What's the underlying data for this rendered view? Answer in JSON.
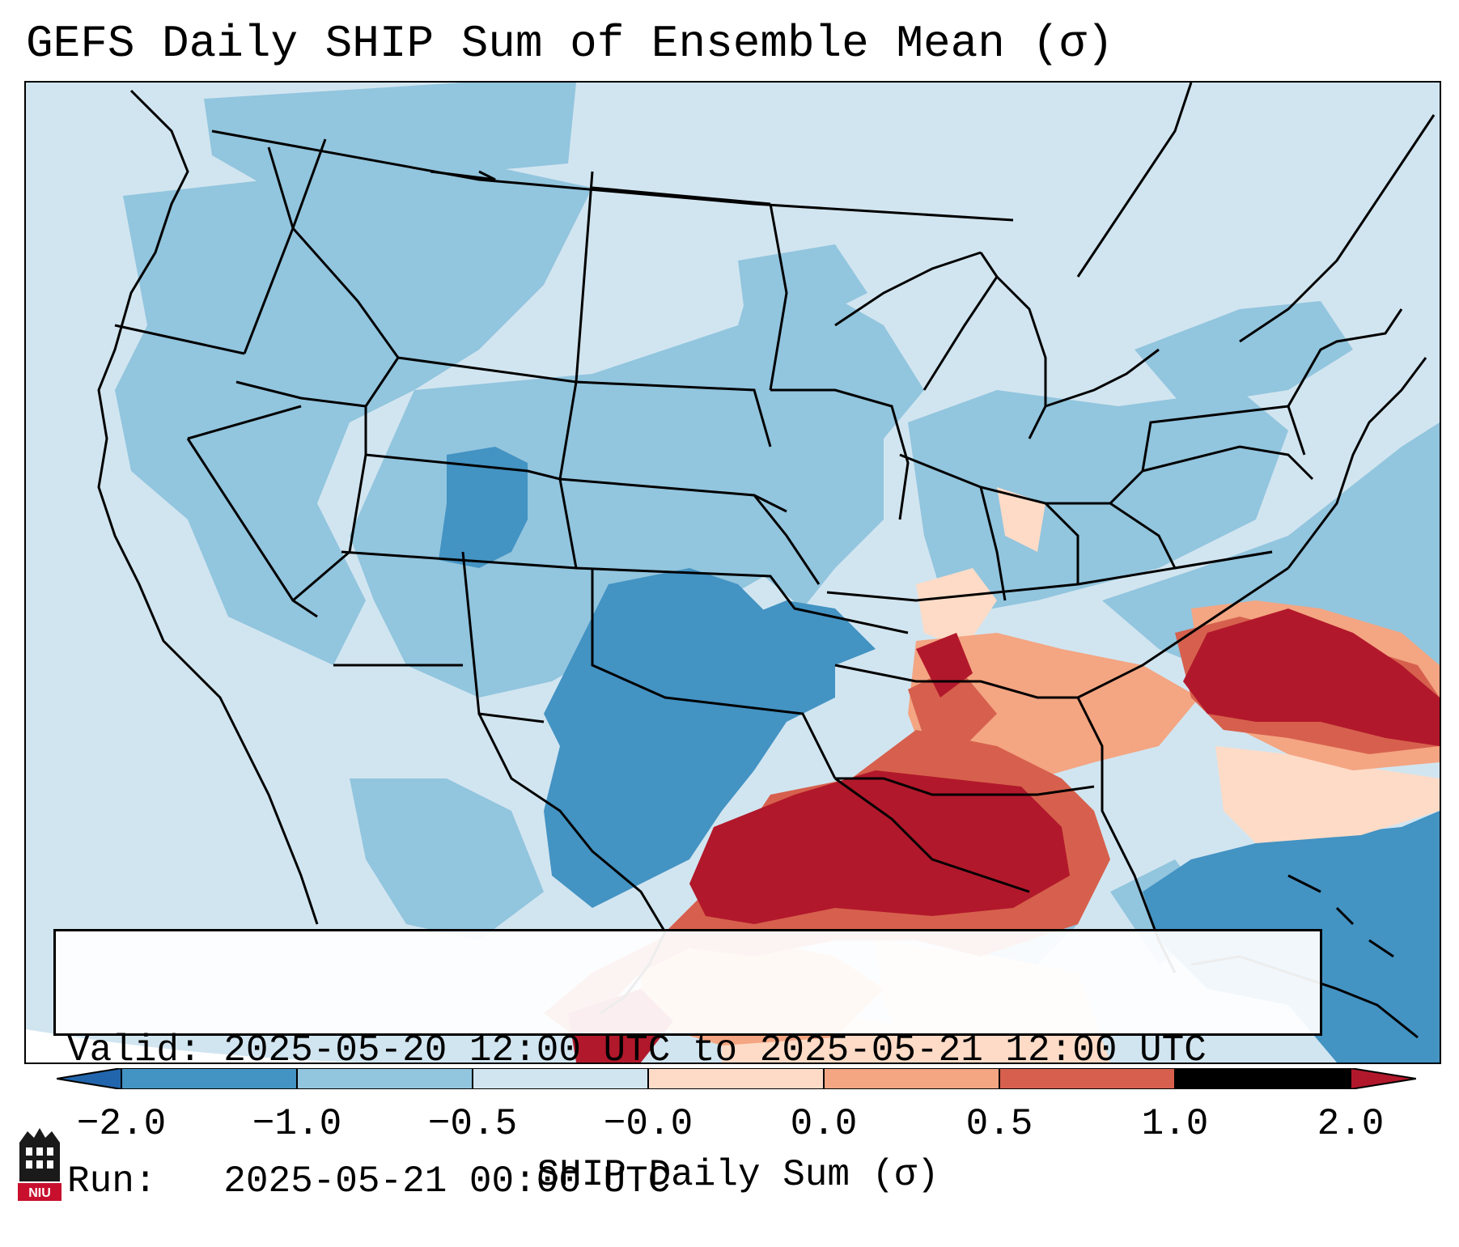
{
  "title": "GEFS Daily SHIP Sum of Ensemble Mean (σ)",
  "info": {
    "valid_label": "Valid:",
    "valid_value": "2025-05-20 12:00 UTC to 2025-05-21 12:00 UTC",
    "run_label": "Run:",
    "run_value": "2025-05-21 00:00 UTC"
  },
  "colorbar": {
    "label": "SHIP Daily Sum (σ)",
    "ticks": [
      "−2.0",
      "−1.0",
      "−0.5",
      "−0.0",
      "0.0",
      "0.5",
      "1.0",
      "2.0"
    ],
    "colors": {
      "below_min": "#2166ac",
      "bin_-2_-1": "#4393c3",
      "bin_-1_-0.5": "#92c5de",
      "bin_-0.5_0": "#d1e5f0",
      "bin_0_0.5": "#fddbc7",
      "bin_0.5_1": "#f4a582",
      "bin_1_2": "#d6604d",
      "above_max": "#b2182b"
    }
  },
  "logo": {
    "text": "NIU",
    "icon": "niu-university-logo-icon"
  }
}
